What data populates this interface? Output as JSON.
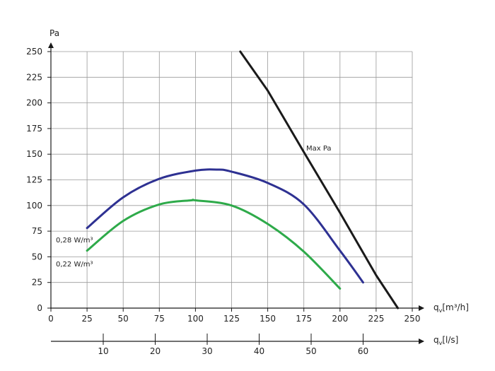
{
  "chart_data": {
    "type": "line",
    "ylabel": "Pa",
    "xlabel": "q",
    "xlabel_sub": "v",
    "xlabel_unit": "[m³/h]",
    "x2label": "q",
    "x2label_sub": "v",
    "x2label_unit": "[l/s]",
    "xlim": [
      0,
      250
    ],
    "ylim": [
      0,
      250
    ],
    "xticks": [
      0,
      25,
      50,
      75,
      100,
      125,
      150,
      175,
      200,
      225,
      250
    ],
    "yticks": [
      0,
      25,
      50,
      75,
      100,
      125,
      150,
      175,
      200,
      225,
      250
    ],
    "x2ticks": [
      10,
      20,
      30,
      40,
      50,
      60
    ],
    "grid": true,
    "colors": {
      "line_028": "#2e3192",
      "line_022": "#2eaa4a",
      "max": "#1a1a1a",
      "grid": "#9a9a9a"
    },
    "series": [
      {
        "name": "0,28 W/m³",
        "color": "#2e3192",
        "points": [
          [
            25,
            78
          ],
          [
            50,
            108
          ],
          [
            75,
            126
          ],
          [
            100,
            134
          ],
          [
            115,
            135
          ],
          [
            125,
            133
          ],
          [
            150,
            122
          ],
          [
            175,
            101
          ],
          [
            200,
            56
          ],
          [
            216,
            25
          ]
        ]
      },
      {
        "name": "0,22 W/m³",
        "color": "#2eaa4a",
        "points": [
          [
            25,
            56
          ],
          [
            50,
            85
          ],
          [
            75,
            101
          ],
          [
            97,
            105
          ],
          [
            100,
            105
          ],
          [
            125,
            100
          ],
          [
            150,
            82
          ],
          [
            175,
            55
          ],
          [
            200,
            19
          ]
        ]
      },
      {
        "name": "Max Pa",
        "color": "#1a1a1a",
        "points": [
          [
            131,
            250
          ],
          [
            150,
            212
          ],
          [
            175,
            152
          ],
          [
            200,
            93
          ],
          [
            225,
            32
          ],
          [
            240,
            0
          ]
        ]
      }
    ]
  }
}
